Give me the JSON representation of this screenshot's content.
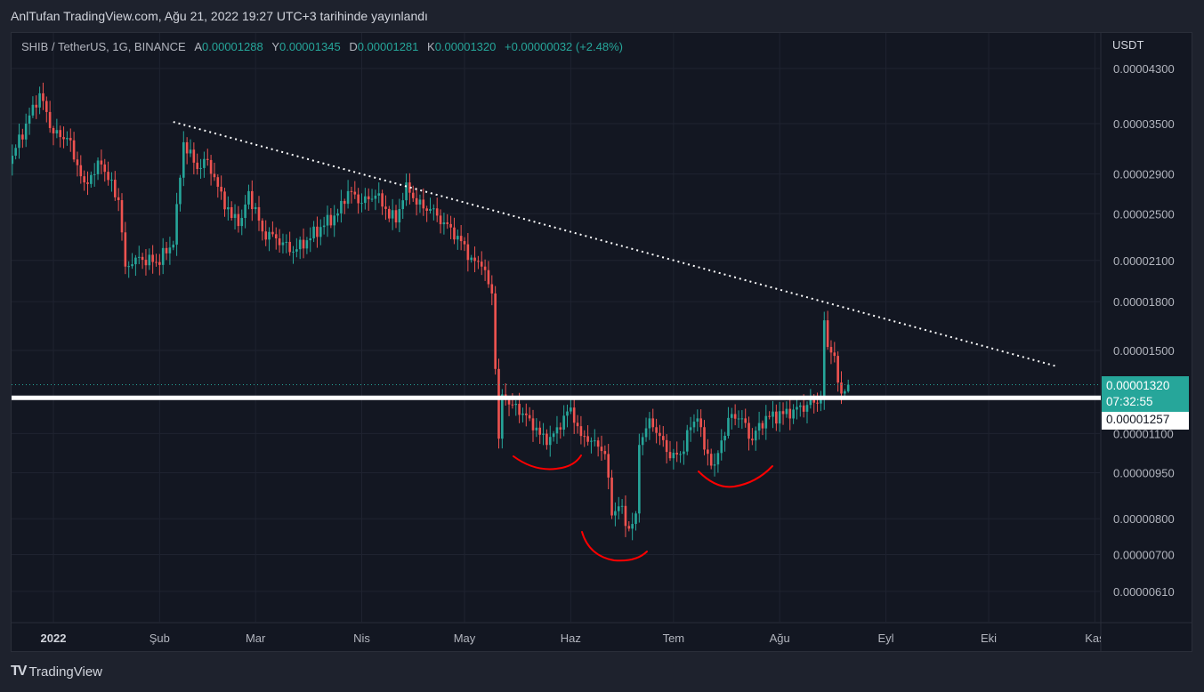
{
  "header": {
    "published": "AnlTufan TradingView.com, Ağu 21, 2022 19:27 UTC+3 tarihinde yayınlandı"
  },
  "legend": {
    "symbol": "SHIB / TetherUS, 1G, BINANCE",
    "open_label": "A",
    "open": "0.00001288",
    "high_label": "Y",
    "high": "0.00001345",
    "low_label": "D",
    "low": "0.00001281",
    "close_label": "K",
    "close": "0.00001320",
    "change": "+0.00000032 (+2.48%)"
  },
  "price_axis": {
    "unit": "USDT"
  },
  "last_price": {
    "value": "0.00001320",
    "countdown": "07:32:55"
  },
  "level_label": {
    "value": "0.00001257"
  },
  "footer": {
    "brand": "TradingView",
    "logo": "TV"
  },
  "colors": {
    "up": "#26a69a",
    "down": "#ef5350",
    "trendline": "#ffffff",
    "level": "#ffffff",
    "annotation": "#ff0000"
  },
  "chart_data": {
    "type": "candlestick",
    "title": "SHIB / TetherUS, 1G, BINANCE",
    "scale": "log",
    "ylim": [
      5.8e-06,
      4.5e-05
    ],
    "xlim": [
      "2021-12-19",
      "2022-11-03"
    ],
    "grid": true,
    "y_ticks": [
      {
        "value": 4.3e-05,
        "label": "0.00004300"
      },
      {
        "value": 3.5e-05,
        "label": "0.00003500"
      },
      {
        "value": 2.9e-05,
        "label": "0.00002900"
      },
      {
        "value": 2.5e-05,
        "label": "0.00002500"
      },
      {
        "value": 2.1e-05,
        "label": "0.00002100"
      },
      {
        "value": 1.8e-05,
        "label": "0.00001800"
      },
      {
        "value": 1.5e-05,
        "label": "0.00001500"
      },
      {
        "value": 1.1e-05,
        "label": "0.00001100"
      },
      {
        "value": 9.5e-06,
        "label": "0.00000950"
      },
      {
        "value": 8e-06,
        "label": "0.00000800"
      },
      {
        "value": 7e-06,
        "label": "0.00000700"
      },
      {
        "value": 6.1e-06,
        "label": "0.00000610"
      }
    ],
    "x_ticks": [
      {
        "date": "2022-01-01",
        "label": "2022",
        "bold": true
      },
      {
        "date": "2022-02-01",
        "label": "Şub"
      },
      {
        "date": "2022-03-01",
        "label": "Mar"
      },
      {
        "date": "2022-04-01",
        "label": "Nis"
      },
      {
        "date": "2022-05-01",
        "label": "May"
      },
      {
        "date": "2022-06-01",
        "label": "Haz"
      },
      {
        "date": "2022-07-01",
        "label": "Tem"
      },
      {
        "date": "2022-08-01",
        "label": "Ağu"
      },
      {
        "date": "2022-09-01",
        "label": "Eyl"
      },
      {
        "date": "2022-10-01",
        "label": "Eki"
      },
      {
        "date": "2022-11-01",
        "label": "Kas"
      }
    ],
    "closes": [
      [
        "2021-12-20",
        3.105e-05
      ],
      [
        "2021-12-24",
        3.5e-05
      ],
      [
        "2021-12-28",
        3.92e-05
      ],
      [
        "2022-01-01",
        3.374e-05
      ],
      [
        "2022-01-05",
        3.318e-05
      ],
      [
        "2022-01-10",
        2.81e-05
      ],
      [
        "2022-01-15",
        3.005e-05
      ],
      [
        "2022-01-20",
        2.63e-05
      ],
      [
        "2022-01-22",
        2.052e-05
      ],
      [
        "2022-01-25",
        2.122e-05
      ],
      [
        "2022-01-31",
        2.087e-05
      ],
      [
        "2022-02-05",
        2.227e-05
      ],
      [
        "2022-02-07",
        2.86e-05
      ],
      [
        "2022-02-08",
        3.265e-05
      ],
      [
        "2022-02-12",
        2.955e-05
      ],
      [
        "2022-02-15",
        3.055e-05
      ],
      [
        "2022-02-18",
        2.765e-05
      ],
      [
        "2022-02-22",
        2.461e-05
      ],
      [
        "2022-02-25",
        2.461e-05
      ],
      [
        "2022-02-27",
        2.72e-05
      ],
      [
        "2022-03-03",
        2.34e-05
      ],
      [
        "2022-03-07",
        2.28e-05
      ],
      [
        "2022-03-12",
        2.17e-05
      ],
      [
        "2022-03-16",
        2.264e-05
      ],
      [
        "2022-03-20",
        2.379e-05
      ],
      [
        "2022-03-25",
        2.503e-05
      ],
      [
        "2022-03-28",
        2.72e-05
      ],
      [
        "2022-04-01",
        2.603e-05
      ],
      [
        "2022-04-05",
        2.675e-05
      ],
      [
        "2022-04-08",
        2.545e-05
      ],
      [
        "2022-04-11",
        2.42e-05
      ],
      [
        "2022-04-14",
        2.81e-05
      ],
      [
        "2022-04-17",
        2.587e-05
      ],
      [
        "2022-04-21",
        2.545e-05
      ],
      [
        "2022-04-25",
        2.42e-05
      ],
      [
        "2022-04-29",
        2.302e-05
      ],
      [
        "2022-05-03",
        2.122e-05
      ],
      [
        "2022-05-06",
        2.052e-05
      ],
      [
        "2022-05-09",
        1.856e-05
      ],
      [
        "2022-05-10",
        1.4e-05
      ],
      [
        "2022-05-11",
        1.079e-05
      ],
      [
        "2022-05-12",
        1.273e-05
      ],
      [
        "2022-05-15",
        1.224e-05
      ],
      [
        "2022-05-20",
        1.164e-05
      ],
      [
        "2022-05-25",
        1.054e-05
      ],
      [
        "2022-05-28",
        1.126e-05
      ],
      [
        "2022-06-01",
        1.212e-05
      ],
      [
        "2022-06-04",
        1.09e-05
      ],
      [
        "2022-06-08",
        1.072e-05
      ],
      [
        "2022-06-11",
        1.019e-05
      ],
      [
        "2022-06-13",
        8.1e-06
      ],
      [
        "2022-06-15",
        8.38e-06
      ],
      [
        "2022-06-18",
        7.71e-06
      ],
      [
        "2022-06-20",
        8.16e-06
      ],
      [
        "2022-06-21",
        1.054e-05
      ],
      [
        "2022-06-24",
        1.164e-05
      ],
      [
        "2022-06-27",
        1.09e-05
      ],
      [
        "2022-06-30",
        1.003e-05
      ],
      [
        "2022-07-03",
        1.019e-05
      ],
      [
        "2022-07-06",
        1.126e-05
      ],
      [
        "2022-07-08",
        1.164e-05
      ],
      [
        "2022-07-10",
        1.036e-05
      ],
      [
        "2022-07-13",
        9.8e-06
      ],
      [
        "2022-07-15",
        1.072e-05
      ],
      [
        "2022-07-18",
        1.183e-05
      ],
      [
        "2022-07-21",
        1.164e-05
      ],
      [
        "2022-07-24",
        1.072e-05
      ],
      [
        "2022-07-26",
        1.144e-05
      ],
      [
        "2022-07-29",
        1.171e-05
      ],
      [
        "2022-08-02",
        1.183e-05
      ],
      [
        "2022-08-05",
        1.203e-05
      ],
      [
        "2022-08-09",
        1.224e-05
      ],
      [
        "2022-08-13",
        1.253e-05
      ],
      [
        "2022-08-14",
        1.679e-05
      ],
      [
        "2022-08-15",
        1.52e-05
      ],
      [
        "2022-08-17",
        1.47e-05
      ],
      [
        "2022-08-18",
        1.331e-05
      ],
      [
        "2022-08-19",
        1.277e-05
      ],
      [
        "2022-08-20",
        1.288e-05
      ],
      [
        "2022-08-21",
        1.32e-05
      ]
    ],
    "last_candle": {
      "date": "2022-08-21",
      "open": 1.288e-05,
      "high": 1.345e-05,
      "low": 1.281e-05,
      "close": 1.32e-05
    },
    "trendline": {
      "style": "dotted",
      "from": [
        "2022-02-05",
        3.523e-05
      ],
      "to": [
        "2022-10-21",
        1.413e-05
      ]
    },
    "horizontal_level": {
      "value": 1.257e-05
    },
    "annotations": [
      "rounded-bottom-left-shoulder",
      "rounded-bottom-head",
      "rounded-bottom-right-shoulder"
    ]
  }
}
